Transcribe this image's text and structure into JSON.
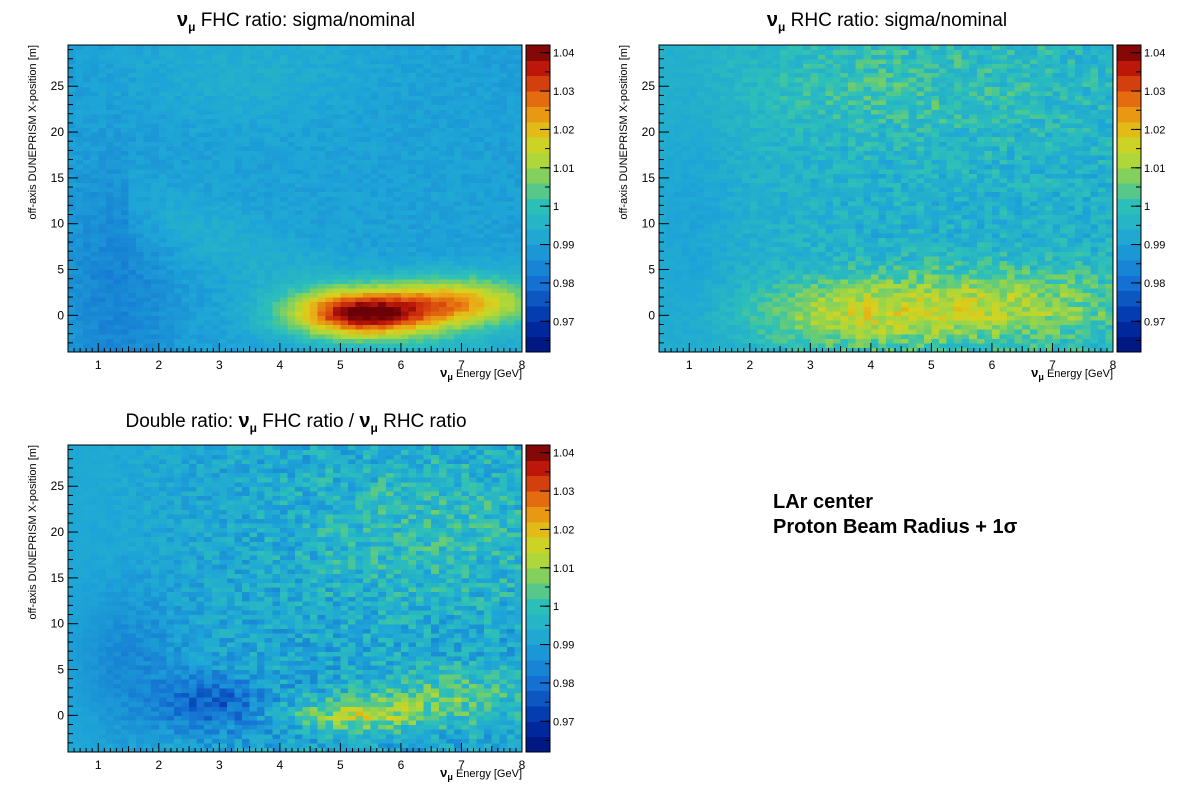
{
  "annotation": {
    "line1": "LAr center",
    "line2": "Proton Beam Radius + 1σ"
  },
  "chart_data": [
    {
      "type": "heatmap",
      "id": "fhc",
      "title_pre": "",
      "title_sym": "ν",
      "title_sub": "μ",
      "title_rest": " FHC ratio: sigma/nominal",
      "title_post": "",
      "xlabel_sym": "ν",
      "xlabel_sub": "μ",
      "xlabel": " Energy [GeV]",
      "ylabel": "off-axis DUNEPRISM X-position [m]",
      "xlim": [
        0.5,
        8
      ],
      "ylim": [
        -4,
        29.5
      ],
      "zlim": [
        0.962,
        1.042
      ],
      "xticks": [
        "1",
        "2",
        "3",
        "4",
        "5",
        "6",
        "7",
        "8"
      ],
      "yticks": [
        "0",
        "5",
        "10",
        "15",
        "20",
        "25"
      ],
      "zticks": [
        "0.97",
        "0.98",
        "0.99",
        "1",
        "1.01",
        "1.02",
        "1.03",
        "1.04"
      ],
      "bins": {
        "nx": 60,
        "ny": 67
      },
      "features": [
        {
          "kind": "hotspot",
          "energy_gev": 5.2,
          "position_m": 0,
          "ratio": 1.04
        },
        {
          "kind": "plateau_low",
          "energy_gev": 1.5,
          "position_m": 0,
          "ratio": 0.985
        },
        {
          "kind": "band",
          "description_ratio": 1.0
        }
      ]
    },
    {
      "type": "heatmap",
      "id": "rhc",
      "title_pre": "",
      "title_sym": "ν",
      "title_sub": "μ",
      "title_rest": " RHC ratio: sigma/nominal",
      "title_post": "",
      "xlabel_sym": "ν",
      "xlabel_sub": "μ",
      "xlabel": " Energy [GeV]",
      "ylabel": "off-axis DUNEPRISM X-position [m]",
      "xlim": [
        0.5,
        8
      ],
      "ylim": [
        -4,
        29.5
      ],
      "zlim": [
        0.962,
        1.042
      ],
      "xticks": [
        "1",
        "2",
        "3",
        "4",
        "5",
        "6",
        "7",
        "8"
      ],
      "yticks": [
        "0",
        "5",
        "10",
        "15",
        "20",
        "25"
      ],
      "zticks": [
        "0.97",
        "0.98",
        "0.99",
        "1",
        "1.01",
        "1.02",
        "1.03",
        "1.04"
      ],
      "bins": {
        "nx": 60,
        "ny": 67
      },
      "features": [
        {
          "kind": "hotspot",
          "energy_gev": 6.5,
          "position_m": 1,
          "ratio": 1.025
        }
      ]
    },
    {
      "type": "heatmap",
      "id": "double",
      "title_pre": "Double ratio: ",
      "title_sym": "ν",
      "title_sub": "μ",
      "title_rest": " FHC ratio / ",
      "title_sym2": "ν",
      "title_sub2": "μ",
      "title_post": " RHC ratio",
      "xlabel_sym": "ν",
      "xlabel_sub": "μ",
      "xlabel": " Energy [GeV]",
      "ylabel": "off-axis DUNEPRISM X-position [m]",
      "xlim": [
        0.5,
        8
      ],
      "ylim": [
        -4,
        29.5
      ],
      "zlim": [
        0.962,
        1.042
      ],
      "xticks": [
        "1",
        "2",
        "3",
        "4",
        "5",
        "6",
        "7",
        "8"
      ],
      "yticks": [
        "0",
        "5",
        "10",
        "15",
        "20",
        "25"
      ],
      "zticks": [
        "0.97",
        "0.98",
        "0.99",
        "1",
        "1.01",
        "1.02",
        "1.03",
        "1.04"
      ],
      "bins": {
        "nx": 60,
        "ny": 67
      },
      "features": [
        {
          "kind": "coldspot",
          "energy_gev": 3.0,
          "position_m": 1,
          "ratio": 0.975
        },
        {
          "kind": "hotspot",
          "energy_gev": 5.3,
          "position_m": 0,
          "ratio": 1.015
        }
      ]
    }
  ]
}
